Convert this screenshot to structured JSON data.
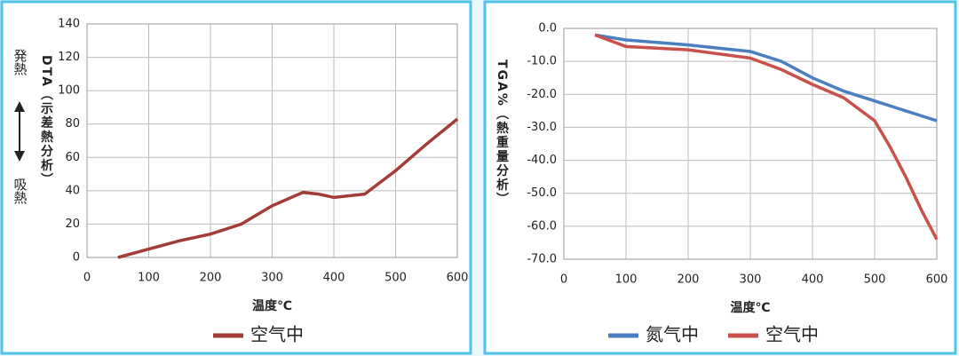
{
  "chart_data": [
    {
      "type": "line",
      "y_label": "DTA（示差熱分析）",
      "x_label": "温度℃",
      "annotations": [
        "発熱",
        "吸熱"
      ],
      "xlim": [
        0,
        600
      ],
      "xticks": [
        0,
        100,
        200,
        300,
        400,
        500,
        600
      ],
      "ylim": [
        0,
        140
      ],
      "yticks": [
        0,
        20,
        40,
        60,
        80,
        100,
        120,
        140
      ],
      "grid": true,
      "series": [
        {
          "name": "空气中",
          "color": "#a33b36",
          "x": [
            50,
            100,
            150,
            200,
            250,
            300,
            350,
            375,
            400,
            450,
            500,
            550,
            600
          ],
          "values": [
            0,
            5,
            10,
            14,
            20,
            31,
            39,
            38,
            36,
            38,
            52,
            68,
            83
          ]
        }
      ]
    },
    {
      "type": "line",
      "y_label": "TGA%（熱重量分析）",
      "x_label": "温度℃",
      "xlim": [
        0,
        600
      ],
      "xticks": [
        0,
        100,
        200,
        300,
        400,
        500,
        600
      ],
      "ylim": [
        -70,
        0
      ],
      "yticks": [
        {
          "value": 0,
          "label": "0.0"
        },
        {
          "value": -10,
          "label": "-10.0"
        },
        {
          "value": -20,
          "label": "-20.0"
        },
        {
          "value": -30,
          "label": "-30.0"
        },
        {
          "value": -40,
          "label": "-40.0"
        },
        {
          "value": -50,
          "label": "-50.0"
        },
        {
          "value": -60,
          "label": "-60.0"
        },
        {
          "value": -70,
          "label": "-70.0"
        }
      ],
      "grid": true,
      "series": [
        {
          "name": "氮气中",
          "color": "#4a7fc1",
          "x": [
            50,
            100,
            200,
            300,
            350,
            400,
            450,
            500,
            550,
            600
          ],
          "values": [
            -2,
            -3.5,
            -5,
            -7,
            -10,
            -15,
            -19,
            -22,
            -25,
            -28
          ]
        },
        {
          "name": "空气中",
          "color": "#c9504b",
          "x": [
            50,
            100,
            200,
            300,
            350,
            400,
            450,
            500,
            525,
            550,
            575,
            600
          ],
          "values": [
            -2,
            -5.5,
            -6.5,
            -9,
            -12.5,
            -17,
            -21,
            -28,
            -36,
            -45,
            -55,
            -64
          ]
        }
      ]
    }
  ]
}
